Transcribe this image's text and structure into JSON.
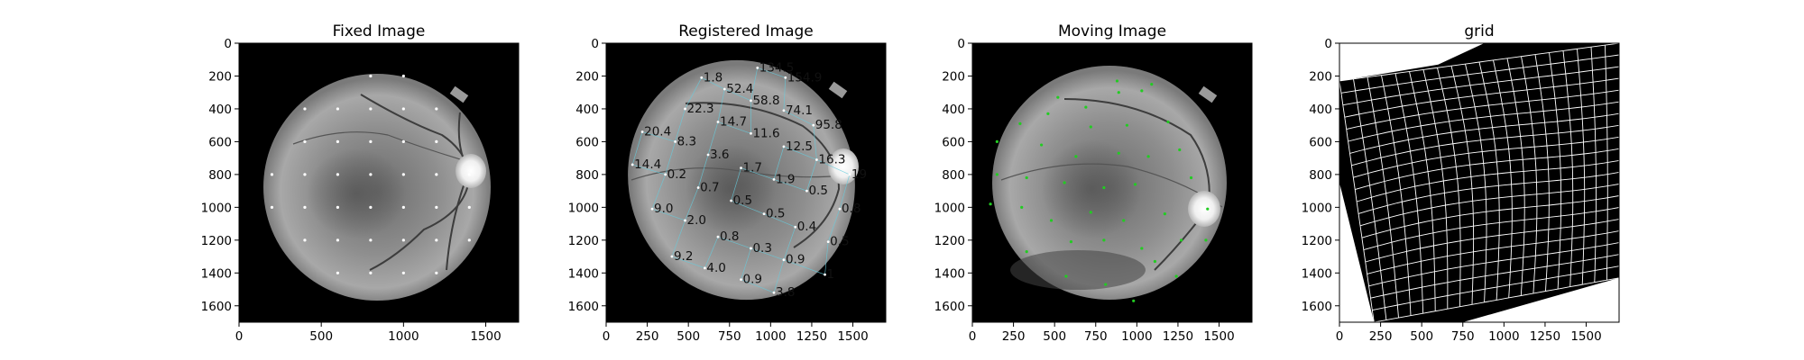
{
  "panels": [
    {
      "title": "Fixed Image",
      "kind": "fixed"
    },
    {
      "title": "Registered Image",
      "kind": "registered"
    },
    {
      "title": "Moving Image",
      "kind": "moving"
    },
    {
      "title": "grid",
      "kind": "grid"
    }
  ],
  "chart_data": [
    {
      "type": "scatter",
      "title": "Fixed Image",
      "xlim": [
        0,
        1700
      ],
      "ylim": [
        1700,
        0
      ],
      "xticks": [
        0,
        500,
        1000,
        1500
      ],
      "yticks": [
        0,
        200,
        400,
        600,
        800,
        1000,
        1200,
        1400,
        1600
      ],
      "background": "retinal fundus image",
      "point_color": "#ffffff",
      "points": [
        [
          800,
          200
        ],
        [
          1000,
          200
        ],
        [
          400,
          400
        ],
        [
          600,
          400
        ],
        [
          800,
          400
        ],
        [
          1000,
          400
        ],
        [
          1200,
          400
        ],
        [
          400,
          600
        ],
        [
          600,
          600
        ],
        [
          800,
          600
        ],
        [
          1000,
          600
        ],
        [
          1200,
          600
        ],
        [
          200,
          800
        ],
        [
          400,
          800
        ],
        [
          600,
          800
        ],
        [
          800,
          800
        ],
        [
          1000,
          800
        ],
        [
          1200,
          800
        ],
        [
          1400,
          800
        ],
        [
          200,
          1000
        ],
        [
          400,
          1000
        ],
        [
          600,
          1000
        ],
        [
          800,
          1000
        ],
        [
          1000,
          1000
        ],
        [
          1200,
          1000
        ],
        [
          1400,
          1000
        ],
        [
          400,
          1200
        ],
        [
          600,
          1200
        ],
        [
          800,
          1200
        ],
        [
          1000,
          1200
        ],
        [
          1200,
          1200
        ],
        [
          1400,
          1200
        ],
        [
          600,
          1400
        ],
        [
          800,
          1400
        ],
        [
          1000,
          1400
        ],
        [
          1200,
          1400
        ]
      ]
    },
    {
      "type": "scatter",
      "title": "Registered Image",
      "xlim": [
        0,
        1700
      ],
      "ylim": [
        1700,
        0
      ],
      "xticks": [
        0,
        250,
        500,
        750,
        1000,
        1250,
        1500
      ],
      "yticks": [
        0,
        200,
        400,
        600,
        800,
        1000,
        1200,
        1400,
        1600
      ],
      "background": "retinal fundus image",
      "line_color": "#66ccdd",
      "labels": [
        {
          "x": 920,
          "y": 150,
          "text": "134.5"
        },
        {
          "x": 1090,
          "y": 210,
          "text": "154.9"
        },
        {
          "x": 580,
          "y": 210,
          "text": "1.8"
        },
        {
          "x": 720,
          "y": 280,
          "text": "52.4"
        },
        {
          "x": 880,
          "y": 350,
          "text": "58.8"
        },
        {
          "x": 480,
          "y": 400,
          "text": "22.3"
        },
        {
          "x": 1080,
          "y": 410,
          "text": "74.1"
        },
        {
          "x": 680,
          "y": 480,
          "text": "14.7"
        },
        {
          "x": 1260,
          "y": 500,
          "text": "95.8"
        },
        {
          "x": 220,
          "y": 540,
          "text": "20.4"
        },
        {
          "x": 880,
          "y": 550,
          "text": "11.6"
        },
        {
          "x": 420,
          "y": 600,
          "text": "8.3"
        },
        {
          "x": 1080,
          "y": 630,
          "text": "12.5"
        },
        {
          "x": 620,
          "y": 680,
          "text": "3.6"
        },
        {
          "x": 1280,
          "y": 710,
          "text": "16.3"
        },
        {
          "x": 160,
          "y": 740,
          "text": "14.4"
        },
        {
          "x": 820,
          "y": 760,
          "text": "1.7"
        },
        {
          "x": 360,
          "y": 800,
          "text": "0.2"
        },
        {
          "x": 1480,
          "y": 800,
          "text": "19"
        },
        {
          "x": 1020,
          "y": 830,
          "text": "1.9"
        },
        {
          "x": 560,
          "y": 880,
          "text": "0.7"
        },
        {
          "x": 1220,
          "y": 900,
          "text": "0.5"
        },
        {
          "x": 760,
          "y": 960,
          "text": "0.5"
        },
        {
          "x": 280,
          "y": 1010,
          "text": "9.0"
        },
        {
          "x": 1420,
          "y": 1010,
          "text": "0.8"
        },
        {
          "x": 960,
          "y": 1040,
          "text": "0.5"
        },
        {
          "x": 480,
          "y": 1080,
          "text": "2.0"
        },
        {
          "x": 1150,
          "y": 1120,
          "text": "0.4"
        },
        {
          "x": 680,
          "y": 1180,
          "text": "0.8"
        },
        {
          "x": 1350,
          "y": 1210,
          "text": "0.5"
        },
        {
          "x": 880,
          "y": 1250,
          "text": "0.3"
        },
        {
          "x": 400,
          "y": 1300,
          "text": "9.2"
        },
        {
          "x": 1080,
          "y": 1320,
          "text": "0.9"
        },
        {
          "x": 600,
          "y": 1370,
          "text": "4.0"
        },
        {
          "x": 1330,
          "y": 1410,
          "text": "1"
        },
        {
          "x": 820,
          "y": 1440,
          "text": "0.9"
        },
        {
          "x": 1020,
          "y": 1520,
          "text": "3.8"
        }
      ]
    },
    {
      "type": "scatter",
      "title": "Moving Image",
      "xlim": [
        0,
        1700
      ],
      "ylim": [
        1700,
        0
      ],
      "xticks": [
        0,
        250,
        500,
        750,
        1000,
        1250,
        1500
      ],
      "yticks": [
        0,
        200,
        400,
        600,
        800,
        1000,
        1200,
        1400,
        1600
      ],
      "background": "retinal fundus image",
      "point_color": "#22cc22",
      "points": [
        [
          880,
          230
        ],
        [
          1090,
          250
        ],
        [
          520,
          330
        ],
        [
          690,
          390
        ],
        [
          890,
          300
        ],
        [
          1030,
          290
        ],
        [
          290,
          490
        ],
        [
          460,
          430
        ],
        [
          720,
          510
        ],
        [
          940,
          500
        ],
        [
          1190,
          480
        ],
        [
          150,
          600
        ],
        [
          420,
          620
        ],
        [
          630,
          690
        ],
        [
          890,
          670
        ],
        [
          1070,
          690
        ],
        [
          1260,
          650
        ],
        [
          150,
          800
        ],
        [
          330,
          820
        ],
        [
          560,
          850
        ],
        [
          800,
          880
        ],
        [
          990,
          860
        ],
        [
          1330,
          820
        ],
        [
          110,
          980
        ],
        [
          300,
          1000
        ],
        [
          480,
          1080
        ],
        [
          720,
          1030
        ],
        [
          920,
          1080
        ],
        [
          1170,
          1040
        ],
        [
          1430,
          1010
        ],
        [
          330,
          1270
        ],
        [
          600,
          1210
        ],
        [
          800,
          1200
        ],
        [
          1030,
          1250
        ],
        [
          1270,
          1200
        ],
        [
          1420,
          1200
        ],
        [
          570,
          1420
        ],
        [
          810,
          1470
        ],
        [
          980,
          1570
        ],
        [
          1240,
          1420
        ],
        [
          1110,
          1330
        ]
      ]
    },
    {
      "type": "image",
      "title": "grid",
      "xlim": [
        0,
        1700
      ],
      "ylim": [
        1700,
        0
      ],
      "xticks": [
        0,
        250,
        500,
        750,
        1000,
        1250,
        1500
      ],
      "yticks": [
        0,
        200,
        400,
        600,
        800,
        1000,
        1200,
        1400,
        1600
      ],
      "background": "deformed grid (white lines on black)",
      "outline": [
        [
          0,
          230
        ],
        [
          600,
          130
        ],
        [
          880,
          0
        ],
        [
          1700,
          0
        ],
        [
          1700,
          1430
        ],
        [
          750,
          1700
        ],
        [
          210,
          1700
        ],
        [
          0,
          850
        ]
      ]
    }
  ]
}
